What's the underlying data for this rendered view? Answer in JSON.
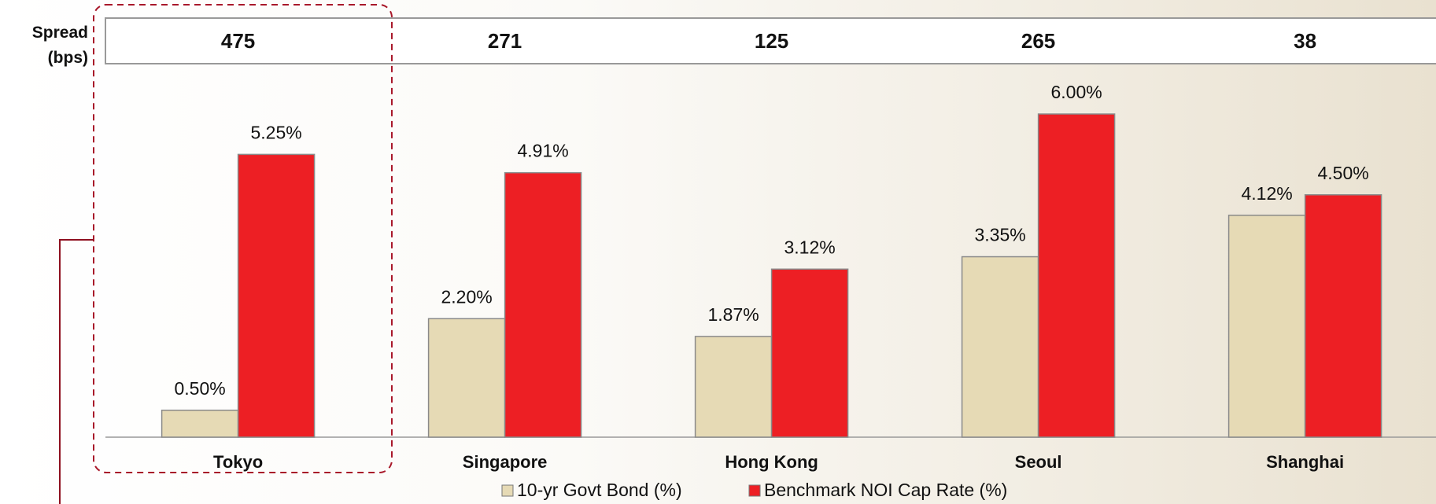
{
  "chart_data": {
    "type": "bar",
    "spread_label": "Spread (bps)",
    "spreads": [
      475,
      271,
      125,
      265,
      38
    ],
    "categories": [
      "Tokyo",
      "Singapore",
      "Hong Kong",
      "Seoul",
      "Shanghai"
    ],
    "series": [
      {
        "name": "10-yr Govt Bond (%)",
        "color": "#e6dab5",
        "values": [
          0.5,
          2.2,
          1.87,
          3.35,
          4.12
        ],
        "value_labels": [
          "0.50%",
          "2.20%",
          "1.87%",
          "3.35%",
          "4.12%"
        ]
      },
      {
        "name": "Benchmark NOI Cap Rate (%)",
        "color": "#ed1f24",
        "values": [
          5.25,
          4.91,
          3.12,
          6.0,
          4.5
        ],
        "value_labels": [
          "5.25%",
          "4.91%",
          "3.12%",
          "6.00%",
          "4.50%"
        ]
      }
    ]
  }
}
